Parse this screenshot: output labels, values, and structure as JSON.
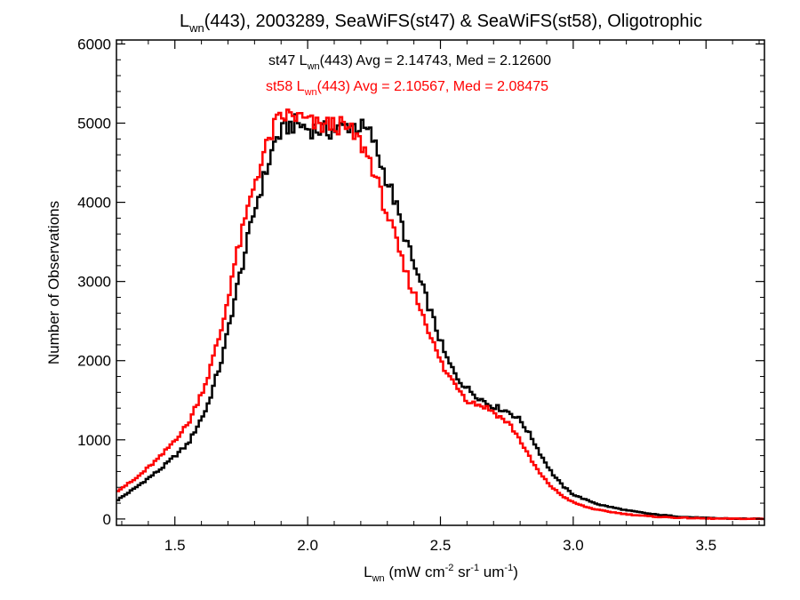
{
  "chart_data": {
    "type": "step",
    "title": {
      "pre": "L",
      "sub": "wn",
      "post": "(443), 2003289, SeaWiFS(st47) & SeaWiFS(st58), Oligotrophic"
    },
    "xlabel": {
      "pre": "L",
      "sub": "wn",
      "post": " (mW cm",
      "sup1": "-2",
      "mid": " sr",
      "sup2": "-1",
      "end": " um",
      "sup3": "-1",
      "close": ")"
    },
    "ylabel": "Number of Observations",
    "xlim": [
      1.28,
      3.72
    ],
    "ylim": [
      -80,
      6050
    ],
    "xticks": [
      1.5,
      2.0,
      2.5,
      3.0,
      3.5
    ],
    "xtick_labels": [
      "1.5",
      "2.0",
      "2.5",
      "3.0",
      "3.5"
    ],
    "yticks": [
      0,
      1000,
      2000,
      3000,
      4000,
      5000,
      6000
    ],
    "ytick_labels": [
      "0",
      "1000",
      "2000",
      "3000",
      "4000",
      "5000",
      "6000"
    ],
    "annotations": [
      {
        "series": "st47",
        "pre": "st47 L",
        "sub": "wn",
        "post": "(443) Avg = 2.14743, Med = 2.12600",
        "color": "#000000"
      },
      {
        "series": "st58",
        "pre": "st58 L",
        "sub": "wn",
        "post": "(443) Avg = 2.10567, Med = 2.08475",
        "color": "#ff0000"
      }
    ],
    "series": [
      {
        "name": "st47",
        "color": "#000000",
        "points": [
          [
            1.28,
            230
          ],
          [
            1.35,
            390
          ],
          [
            1.45,
            640
          ],
          [
            1.55,
            950
          ],
          [
            1.62,
            1400
          ],
          [
            1.68,
            2050
          ],
          [
            1.72,
            2700
          ],
          [
            1.76,
            3300
          ],
          [
            1.8,
            3900
          ],
          [
            1.84,
            4350
          ],
          [
            1.88,
            4800
          ],
          [
            1.92,
            4950
          ],
          [
            1.96,
            5000
          ],
          [
            2.0,
            4930
          ],
          [
            2.04,
            4920
          ],
          [
            2.08,
            4900
          ],
          [
            2.12,
            4930
          ],
          [
            2.16,
            4980
          ],
          [
            2.2,
            4950
          ],
          [
            2.24,
            4850
          ],
          [
            2.28,
            4450
          ],
          [
            2.32,
            4100
          ],
          [
            2.36,
            3650
          ],
          [
            2.4,
            3200
          ],
          [
            2.44,
            2850
          ],
          [
            2.48,
            2450
          ],
          [
            2.52,
            2050
          ],
          [
            2.56,
            1800
          ],
          [
            2.6,
            1650
          ],
          [
            2.64,
            1550
          ],
          [
            2.68,
            1450
          ],
          [
            2.72,
            1400
          ],
          [
            2.76,
            1350
          ],
          [
            2.8,
            1250
          ],
          [
            2.84,
            1050
          ],
          [
            2.88,
            800
          ],
          [
            2.92,
            580
          ],
          [
            2.96,
            420
          ],
          [
            3.0,
            310
          ],
          [
            3.05,
            240
          ],
          [
            3.1,
            180
          ],
          [
            3.2,
            110
          ],
          [
            3.3,
            60
          ],
          [
            3.4,
            30
          ],
          [
            3.5,
            12
          ],
          [
            3.6,
            5
          ],
          [
            3.72,
            2
          ]
        ]
      },
      {
        "name": "st58",
        "color": "#ff0000",
        "points": [
          [
            1.28,
            350
          ],
          [
            1.35,
            500
          ],
          [
            1.45,
            800
          ],
          [
            1.55,
            1200
          ],
          [
            1.62,
            1750
          ],
          [
            1.68,
            2450
          ],
          [
            1.72,
            3150
          ],
          [
            1.76,
            3700
          ],
          [
            1.8,
            4250
          ],
          [
            1.84,
            4650
          ],
          [
            1.88,
            5000
          ],
          [
            1.92,
            5100
          ],
          [
            1.96,
            5080
          ],
          [
            2.0,
            5020
          ],
          [
            2.04,
            4960
          ],
          [
            2.08,
            4980
          ],
          [
            2.12,
            4970
          ],
          [
            2.16,
            4900
          ],
          [
            2.2,
            4750
          ],
          [
            2.24,
            4500
          ],
          [
            2.28,
            4050
          ],
          [
            2.32,
            3650
          ],
          [
            2.36,
            3200
          ],
          [
            2.4,
            2850
          ],
          [
            2.44,
            2550
          ],
          [
            2.48,
            2150
          ],
          [
            2.52,
            1850
          ],
          [
            2.56,
            1700
          ],
          [
            2.6,
            1500
          ],
          [
            2.64,
            1450
          ],
          [
            2.68,
            1400
          ],
          [
            2.72,
            1300
          ],
          [
            2.76,
            1200
          ],
          [
            2.8,
            1000
          ],
          [
            2.84,
            750
          ],
          [
            2.88,
            550
          ],
          [
            2.92,
            400
          ],
          [
            2.96,
            290
          ],
          [
            3.0,
            210
          ],
          [
            3.05,
            150
          ],
          [
            3.1,
            110
          ],
          [
            3.2,
            60
          ],
          [
            3.3,
            30
          ],
          [
            3.4,
            15
          ],
          [
            3.5,
            6
          ],
          [
            3.6,
            3
          ],
          [
            3.72,
            1
          ]
        ]
      }
    ]
  }
}
